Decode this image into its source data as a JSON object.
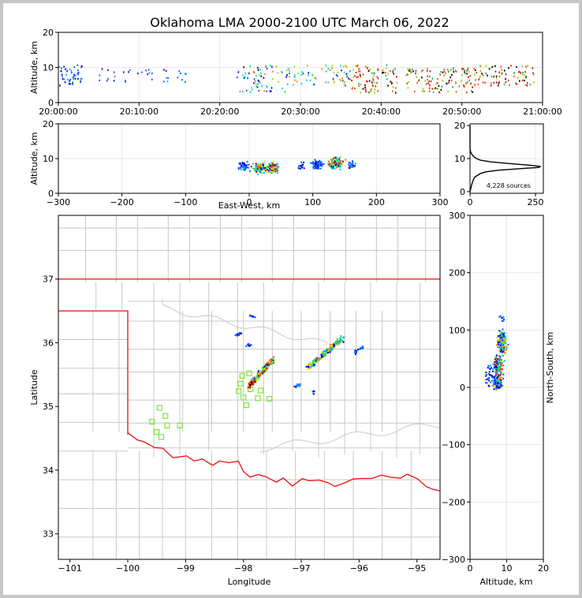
{
  "title": "Oklahoma LMA 2000-2100 UTC March 06, 2022",
  "chart_data": [
    {
      "id": "time-height",
      "type": "scatter",
      "xlabel": "",
      "ylabel": "Altitude, km",
      "xlim": [
        "20:00:00",
        "21:00:00"
      ],
      "ylim": [
        0,
        20
      ],
      "xticks": [
        "20:00:00",
        "20:10:00",
        "20:20:00",
        "20:30:00",
        "20:40:00",
        "20:50:00",
        "21:00:00"
      ],
      "yticks": [
        "0",
        "10",
        "20"
      ],
      "clusters": [
        {
          "t0": 0.0,
          "t1": 3.0,
          "z0": 5,
          "z1": 11,
          "n": 50,
          "c": "early"
        },
        {
          "t0": 5.0,
          "t1": 16.5,
          "z0": 6,
          "z1": 10,
          "n": 35,
          "c": "early"
        },
        {
          "t0": 22.0,
          "t1": 28.5,
          "z0": 3,
          "z1": 11,
          "n": 70,
          "c": "mixed"
        },
        {
          "t0": 28.5,
          "t1": 36.0,
          "z0": 5,
          "z1": 11,
          "n": 60,
          "c": "mixed"
        },
        {
          "t0": 36.0,
          "t1": 42.0,
          "z0": 3,
          "z1": 11,
          "n": 90,
          "c": "late"
        },
        {
          "t0": 43.0,
          "t1": 51.5,
          "z0": 3,
          "z1": 10,
          "n": 110,
          "c": "late"
        },
        {
          "t0": 51.5,
          "t1": 59.0,
          "z0": 5,
          "z1": 11,
          "n": 80,
          "c": "late"
        }
      ]
    },
    {
      "id": "ew-altitude",
      "type": "scatter",
      "xlabel": "East-West, km",
      "ylabel": "Altitude, km",
      "xlim": [
        -300,
        300
      ],
      "ylim": [
        0,
        20
      ],
      "xticks": [
        "−300",
        "−200",
        "−100",
        "0",
        "100",
        "200",
        "300"
      ],
      "yticks": [
        "0",
        "10",
        "20"
      ],
      "clusters": [
        {
          "x": -10,
          "y": 8,
          "sx": 9,
          "sy": 1.2,
          "n": 40,
          "c": "early"
        },
        {
          "x": 15,
          "y": 7.5,
          "sx": 9,
          "sy": 1.5,
          "n": 120,
          "c": "dense"
        },
        {
          "x": 35,
          "y": 7.5,
          "sx": 8,
          "sy": 1.5,
          "n": 140,
          "c": "dense"
        },
        {
          "x": 80,
          "y": 8,
          "sx": 5,
          "sy": 1,
          "n": 20,
          "c": "early"
        },
        {
          "x": 105,
          "y": 8.5,
          "sx": 9,
          "sy": 1.2,
          "n": 80,
          "c": "early"
        },
        {
          "x": 135,
          "y": 9,
          "sx": 10,
          "sy": 1.5,
          "n": 130,
          "c": "dense"
        },
        {
          "x": 160,
          "y": 8.5,
          "sx": 8,
          "sy": 1,
          "n": 25,
          "c": "early"
        }
      ]
    },
    {
      "id": "altitude-histogram",
      "type": "line",
      "xlim": [
        0,
        280
      ],
      "ylim": [
        0,
        20
      ],
      "xticks": [
        "0",
        "250"
      ],
      "yticks": [
        "0",
        "10",
        "20"
      ],
      "annotation": "4,228 sources",
      "altitude_km": [
        0,
        1,
        2,
        3,
        4,
        4.5,
        5,
        5.5,
        6,
        6.5,
        7,
        7.3,
        7.6,
        8,
        8.5,
        9,
        9.5,
        10,
        10.5,
        11,
        11.5,
        12,
        13,
        15,
        20
      ],
      "count": [
        0,
        3,
        6,
        10,
        15,
        20,
        30,
        40,
        60,
        110,
        200,
        260,
        270,
        230,
        150,
        80,
        40,
        25,
        15,
        10,
        5,
        2,
        0,
        0,
        0
      ]
    },
    {
      "id": "plan-view",
      "type": "scatter",
      "xlabel": "Longitude",
      "ylabel": "Latitude",
      "xlim": [
        -101.2,
        -94.6
      ],
      "ylim": [
        32.6,
        38
      ],
      "xticks": [
        "−101",
        "−100",
        "−99",
        "−98",
        "−97",
        "−96",
        "−95"
      ],
      "yticks": [
        "33",
        "34",
        "35",
        "36",
        "37"
      ],
      "state_border_color": "#e8100f",
      "county_color": "#c8c8c8",
      "station_color": "#7de63a",
      "stations": [
        {
          "lon": -99.45,
          "lat": 34.98
        },
        {
          "lon": -99.35,
          "lat": 34.85
        },
        {
          "lon": -99.58,
          "lat": 34.76
        },
        {
          "lon": -99.32,
          "lat": 34.7
        },
        {
          "lon": -99.5,
          "lat": 34.6
        },
        {
          "lon": -99.42,
          "lat": 34.52
        },
        {
          "lon": -99.1,
          "lat": 34.7
        },
        {
          "lon": -98.02,
          "lat": 35.48
        },
        {
          "lon": -97.9,
          "lat": 35.52
        },
        {
          "lon": -98.05,
          "lat": 35.36
        },
        {
          "lon": -98.08,
          "lat": 35.24
        },
        {
          "lon": -97.88,
          "lat": 35.27
        },
        {
          "lon": -97.7,
          "lat": 35.25
        },
        {
          "lon": -98.0,
          "lat": 35.14
        },
        {
          "lon": -97.75,
          "lat": 35.13
        },
        {
          "lon": -97.55,
          "lat": 35.12
        },
        {
          "lon": -97.95,
          "lat": 35.02
        }
      ],
      "strokes": [
        {
          "lon0": -97.9,
          "lat0": 35.35,
          "lon1": -97.5,
          "lat1": 35.75,
          "n": 220,
          "w": 0.035
        },
        {
          "lon0": -96.9,
          "lat0": 35.62,
          "lon1": -96.3,
          "lat1": 36.08,
          "n": 200,
          "w": 0.035
        },
        {
          "lon0": -96.1,
          "lat0": 35.85,
          "lon1": -95.95,
          "lat1": 35.95,
          "n": 18,
          "w": 0.02
        },
        {
          "lon0": -97.12,
          "lat0": 35.33,
          "lon1": -97.02,
          "lat1": 35.35,
          "n": 12,
          "w": 0.02
        },
        {
          "lon0": -98.15,
          "lat0": 36.12,
          "lon1": -98.05,
          "lat1": 36.16,
          "n": 10,
          "w": 0.02
        },
        {
          "lon0": -97.95,
          "lat0": 35.98,
          "lon1": -97.88,
          "lat1": 35.98,
          "n": 8,
          "w": 0.02
        },
        {
          "lon0": -97.9,
          "lat0": 36.42,
          "lon1": -97.8,
          "lat1": 36.44,
          "n": 8,
          "w": 0.02
        },
        {
          "lon0": -96.8,
          "lat0": 35.25,
          "lon1": -96.78,
          "lat1": 35.22,
          "n": 4,
          "w": 0.02
        }
      ]
    },
    {
      "id": "altitude-ns",
      "type": "scatter",
      "xlabel": "Altitude, km",
      "ylabel": "North-South, km",
      "xlim": [
        0,
        20
      ],
      "ylim": [
        -300,
        300
      ],
      "xticks": [
        "0",
        "10",
        "20"
      ],
      "yticks": [
        "−300",
        "−200",
        "−100",
        "0",
        "100",
        "200",
        "300"
      ],
      "clusters": [
        {
          "x": 8.5,
          "y": 80,
          "sx": 1.2,
          "sy": 18,
          "n": 160,
          "c": "mixed"
        },
        {
          "x": 7.5,
          "y": 40,
          "sx": 1.2,
          "sy": 15,
          "n": 160,
          "c": "dense"
        },
        {
          "x": 7.5,
          "y": 10,
          "sx": 1.3,
          "sy": 12,
          "n": 90,
          "c": "mixed"
        },
        {
          "x": 6,
          "y": 20,
          "sx": 2,
          "sy": 25,
          "n": 50,
          "c": "early"
        },
        {
          "x": 8.5,
          "y": 120,
          "sx": 0.8,
          "sy": 6,
          "n": 10,
          "c": "early"
        }
      ]
    }
  ]
}
